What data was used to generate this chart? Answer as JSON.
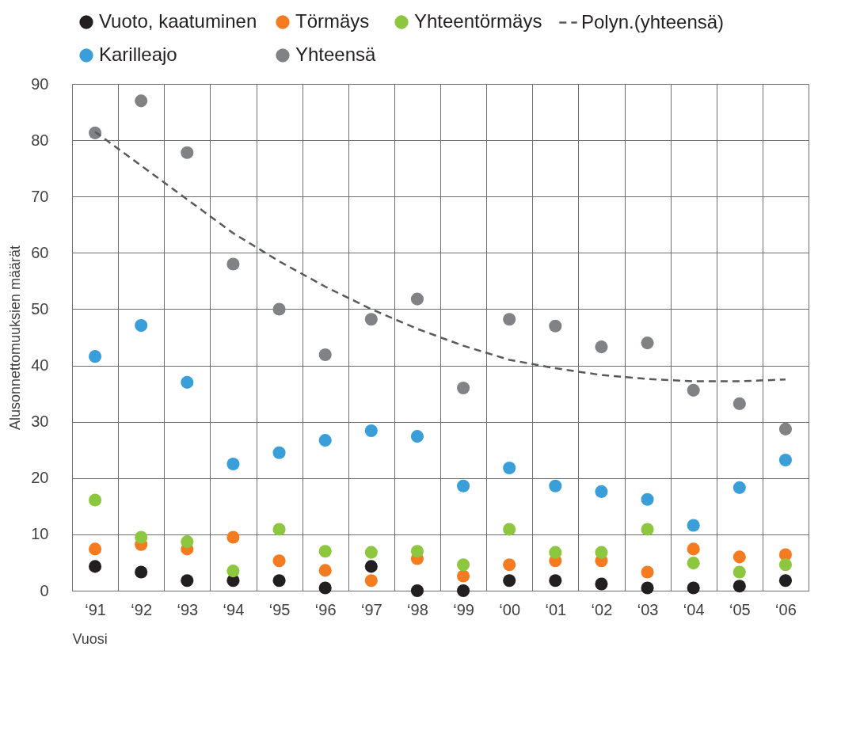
{
  "chart_data": {
    "type": "scatter",
    "xlabel": "Vuosi",
    "ylabel": "Alusonnettomuuksien määrät",
    "categories": [
      "‘91",
      "‘92",
      "‘93",
      "‘94",
      "‘95",
      "‘96",
      "‘97",
      "‘98",
      "‘99",
      "‘00",
      "‘01",
      "‘02",
      "‘03",
      "‘04",
      "‘05",
      "‘06"
    ],
    "series": [
      {
        "name": "Vuoto, kaatuminen",
        "color": "#231f20",
        "values": [
          4.3,
          3.3,
          1.8,
          1.8,
          1.8,
          0.5,
          4.3,
          0,
          0,
          1.8,
          1.8,
          1.2,
          0.5,
          0.5,
          0.8,
          1.8
        ]
      },
      {
        "name": "Törmäys",
        "color": "#f47b20",
        "values": [
          7.4,
          8.2,
          7.4,
          9.5,
          5.3,
          3.6,
          1.8,
          5.7,
          2.6,
          4.6,
          5.3,
          5.3,
          3.3,
          7.4,
          6,
          6.4
        ]
      },
      {
        "name": "Yhteentörmäys",
        "color": "#8dc63f",
        "values": [
          16.1,
          9.5,
          8.7,
          3.5,
          10.9,
          7,
          6.8,
          7,
          4.6,
          10.9,
          6.8,
          6.8,
          10.9,
          4.9,
          3.3,
          4.6
        ]
      },
      {
        "name": "Karilleajo",
        "color": "#3a9fd9",
        "values": [
          41.6,
          47.1,
          37,
          22.5,
          24.5,
          26.7,
          28.4,
          27.4,
          18.6,
          21.8,
          18.6,
          17.6,
          16.2,
          11.6,
          18.3,
          23.2
        ]
      },
      {
        "name": "Yhteensä",
        "color": "#808285",
        "values": [
          81.3,
          87,
          77.8,
          58,
          50,
          41.9,
          48.2,
          51.8,
          36,
          48.2,
          47,
          43.3,
          44,
          35.6,
          33.2,
          28.7
        ]
      },
      {
        "name": "Polyn.(yhteensä)",
        "type": "line",
        "line_style": "dashed",
        "marker": "none",
        "color": "#58595b",
        "x": [
          "‘91",
          "‘92",
          "‘93",
          "‘94",
          "‘95",
          "‘96",
          "‘97",
          "‘98",
          "‘99",
          "‘00",
          "‘01",
          "‘02",
          "‘03",
          "‘04",
          "‘05",
          "‘06"
        ],
        "values": [
          81.5,
          75.5,
          69.5,
          63.5,
          58.5,
          54,
          50,
          46.5,
          43.5,
          41,
          39.5,
          38.3,
          37.6,
          37.2,
          37.2,
          37.5
        ]
      }
    ],
    "ylim": [
      0,
      90
    ],
    "yticks": [
      0,
      10,
      20,
      30,
      40,
      50,
      60,
      70,
      80,
      90
    ],
    "grid": true,
    "legend": "top",
    "marker": "circle"
  }
}
